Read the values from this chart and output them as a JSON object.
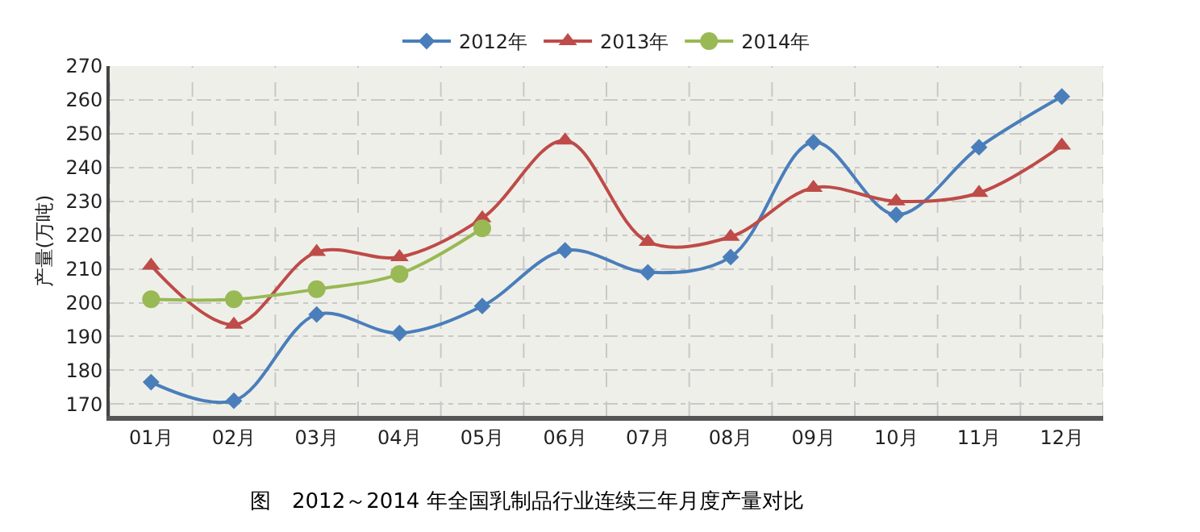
{
  "chart_data": {
    "type": "line",
    "ylabel": "产量(万吨)",
    "categories": [
      "01月",
      "02月",
      "03月",
      "04月",
      "05月",
      "06月",
      "07月",
      "08月",
      "09月",
      "10月",
      "11月",
      "12月"
    ],
    "series": [
      {
        "name": "2012年",
        "color": "#4a7ebb",
        "marker": "diamond",
        "values": [
          176.5,
          171,
          196.5,
          191,
          199,
          215.5,
          209,
          213.5,
          247.5,
          226,
          246,
          261
        ]
      },
      {
        "name": "2013年",
        "color": "#be4b48",
        "marker": "triangle",
        "values": [
          211,
          193.5,
          215,
          213.5,
          225,
          248,
          218,
          219.5,
          234,
          230,
          232.5,
          246.5
        ]
      },
      {
        "name": "2014年",
        "color": "#98b954",
        "marker": "circle",
        "values": [
          201,
          201,
          204,
          208.5,
          222,
          null,
          null,
          null,
          null,
          null,
          null,
          null
        ]
      }
    ],
    "ylim": [
      166.5,
      270
    ],
    "yticks": [
      170,
      180,
      190,
      200,
      210,
      220,
      230,
      240,
      250,
      260,
      270
    ],
    "grid": true,
    "legend": "top",
    "annotations": [
      "图　2012～2014 年全国乳制品行业连续三年月度产量对比"
    ]
  }
}
